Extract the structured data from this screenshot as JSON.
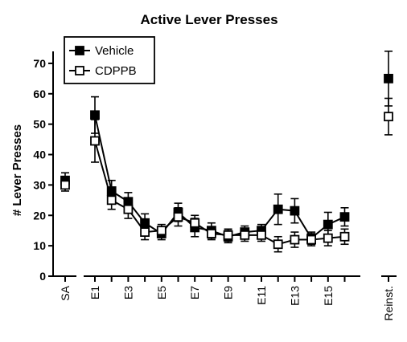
{
  "chart_data": {
    "type": "line",
    "title": "Active Lever Presses",
    "ylabel": "# Lever Presses",
    "xlabel": "",
    "ylim": [
      0,
      75
    ],
    "yticks": [
      0,
      10,
      20,
      30,
      40,
      50,
      60,
      70
    ],
    "grid": false,
    "legend_position": "top-left",
    "x_tick_labels": [
      {
        "label": "SA",
        "at": "SA"
      },
      {
        "label": "E1",
        "at": "E1"
      },
      {
        "label": "E3",
        "at": "E3"
      },
      {
        "label": "E5",
        "at": "E5"
      },
      {
        "label": "E7",
        "at": "E7"
      },
      {
        "label": "E9",
        "at": "E9"
      },
      {
        "label": "E11",
        "at": "E11"
      },
      {
        "label": "E13",
        "at": "E13"
      },
      {
        "label": "E15",
        "at": "E15"
      },
      {
        "label": "Reinst.",
        "at": "Reinst."
      }
    ],
    "categories": [
      "SA",
      "E1",
      "E2",
      "E3",
      "E4",
      "E5",
      "E6",
      "E7",
      "E8",
      "E9",
      "E10",
      "E11",
      "E12",
      "E13",
      "E14",
      "E15",
      "E16",
      "Reinst."
    ],
    "connected_range": [
      "E1",
      "E16"
    ],
    "series": [
      {
        "name": "Vehicle",
        "marker": "filled-square",
        "color": "#000000",
        "values": [
          31.5,
          53,
          28,
          24.5,
          17.5,
          14,
          21,
          16,
          15,
          13,
          14.5,
          15,
          22,
          21.5,
          12.5,
          17,
          19.5,
          65
        ],
        "errors": [
          2.5,
          6,
          3.5,
          3,
          3,
          2,
          3,
          3,
          2.5,
          2,
          2,
          2,
          5,
          4,
          2,
          4,
          3,
          9
        ]
      },
      {
        "name": "CDPPB",
        "marker": "open-square",
        "color": "#000000",
        "values": [
          30,
          44.5,
          25,
          22,
          14.5,
          15,
          19.5,
          17.5,
          14,
          13.5,
          13.5,
          13.5,
          10.5,
          12,
          12,
          12.5,
          13,
          52.5
        ],
        "errors": [
          2,
          7,
          3,
          3,
          2.5,
          2,
          3,
          2.5,
          2,
          2,
          2,
          2,
          2.5,
          2.5,
          2,
          2.5,
          2.5,
          6
        ]
      }
    ]
  }
}
